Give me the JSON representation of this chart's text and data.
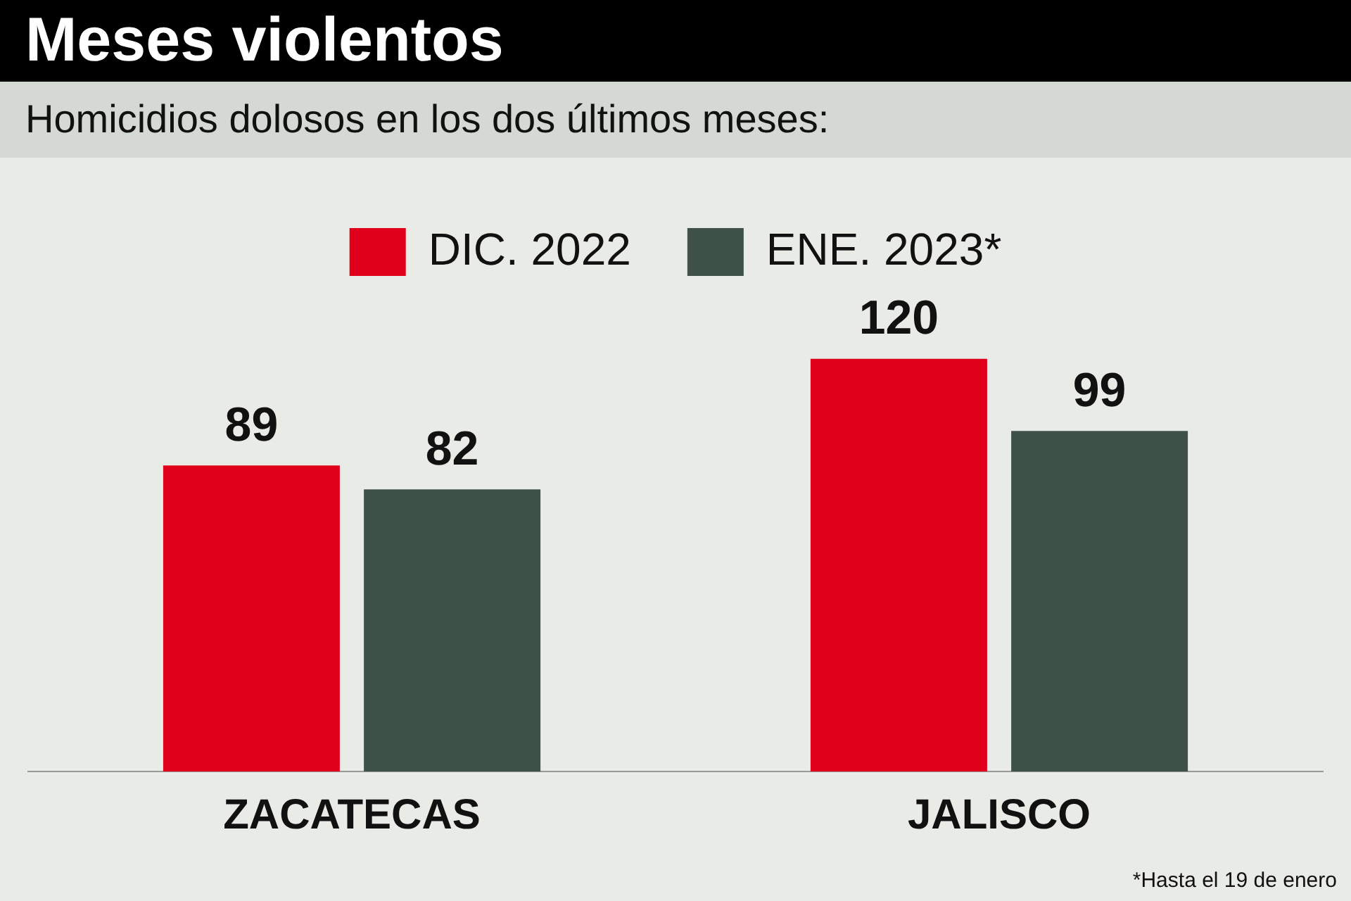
{
  "chart_data": {
    "type": "bar",
    "title": "Meses violentos",
    "subtitle": "Homicidios dolosos en los dos últimos meses:",
    "categories": [
      "ZACATECAS",
      "JALISCO"
    ],
    "series": [
      {
        "name": "DIC. 2022",
        "color": "#e0001b",
        "values": [
          89,
          120
        ]
      },
      {
        "name": "ENE. 2023*",
        "color": "#3f5248",
        "values": [
          82,
          99
        ]
      }
    ],
    "data_labels": true,
    "legend": "top",
    "grid": false,
    "annotations": [
      "*Hasta el 19 de enero"
    ]
  }
}
